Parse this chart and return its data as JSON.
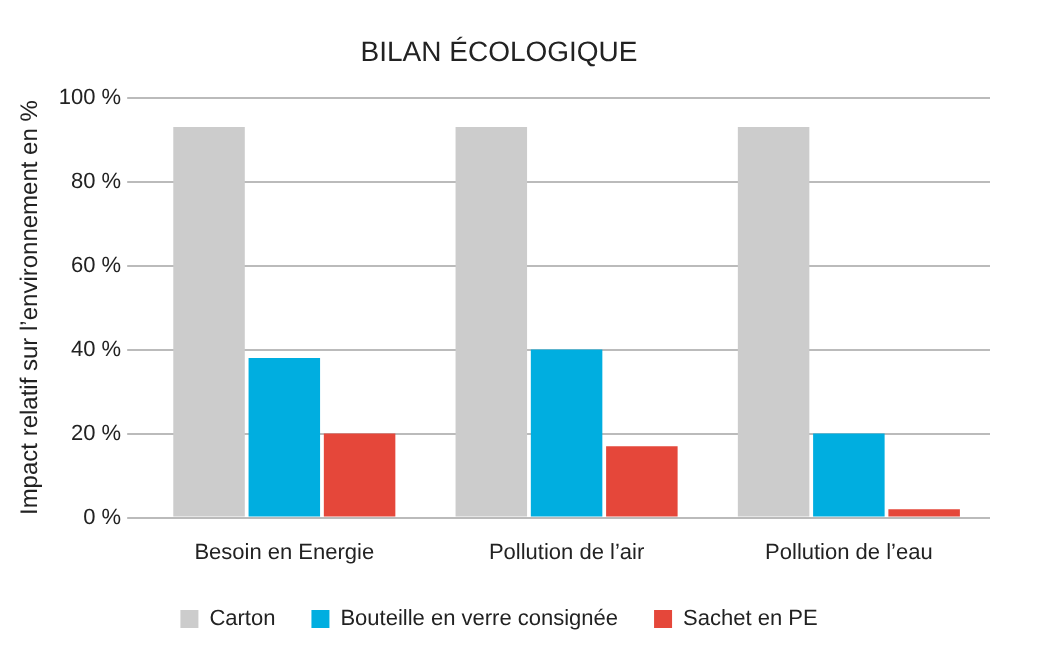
{
  "chart_data": {
    "type": "bar",
    "title": "BILAN ÉCOLOGIQUE",
    "ylabel": "Impact relatif sur l’environnement en %",
    "categories": [
      "Besoin en Energie",
      "Pollution de l’air",
      "Pollution de l’eau"
    ],
    "series": [
      {
        "name": "Carton",
        "color": "#cccccc",
        "values": [
          93,
          93,
          93
        ]
      },
      {
        "name": "Bouteille en verre consignée",
        "color": "#00aee0",
        "values": [
          38,
          40,
          20
        ]
      },
      {
        "name": "Sachet en PE",
        "color": "#e5473a",
        "values": [
          20,
          17,
          2
        ]
      }
    ],
    "ylim": [
      0,
      100
    ],
    "yticks": [
      {
        "value": 0,
        "label": "0 %"
      },
      {
        "value": 20,
        "label": "20 %"
      },
      {
        "value": 40,
        "label": "40 %"
      },
      {
        "value": 60,
        "label": "60 %"
      },
      {
        "value": 80,
        "label": "80 %"
      },
      {
        "value": 100,
        "label": "100 %"
      }
    ],
    "grid": "y",
    "legend": "bottom"
  }
}
